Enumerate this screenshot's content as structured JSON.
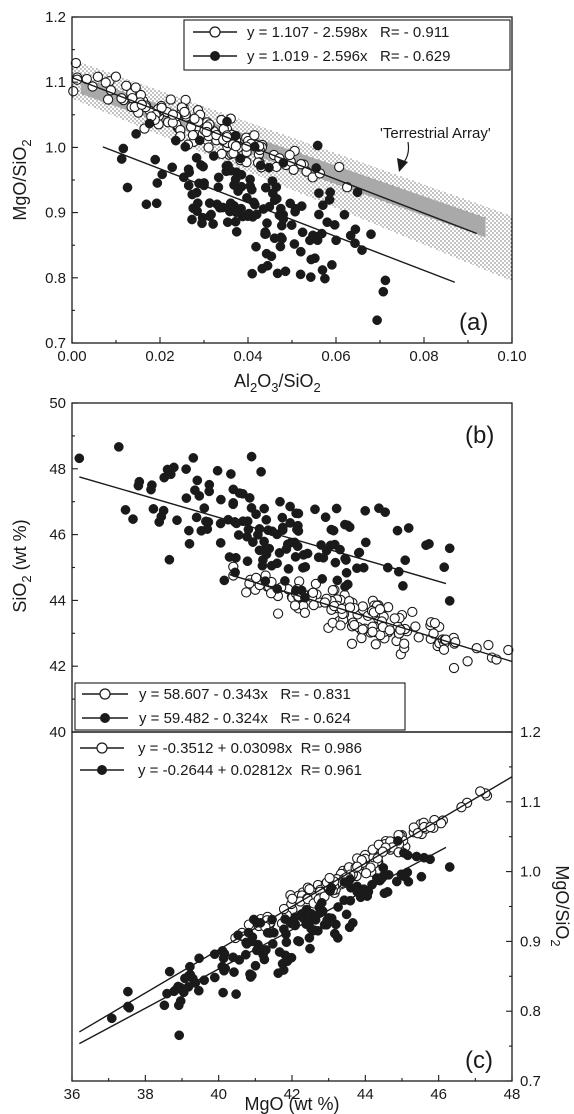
{
  "chart_data": [
    {
      "panel": "(a)",
      "type": "scatter",
      "xlabel": "Al₂O₃/SiO₂",
      "ylabel": "MgO/SiO₂",
      "xlim": [
        0.0,
        0.1
      ],
      "ylim": [
        0.7,
        1.2
      ],
      "xticks": [
        "0.00",
        "0.02",
        "0.04",
        "0.06",
        "0.08",
        "0.10"
      ],
      "yticks": [
        "0.7",
        "0.8",
        "0.9",
        "1.0",
        "1.1",
        "1.2"
      ],
      "legend": "top-right",
      "annotation": "'Terrestrial Array'",
      "series": [
        {
          "marker": "open",
          "label": "y = 1.107 - 2.598x   R= - 0.911",
          "fit": {
            "intercept": 1.107,
            "slope": -2.598,
            "x_range": [
              0.0,
              0.092
            ]
          }
        },
        {
          "marker": "filled",
          "label": "y = 1.019 - 2.596x   R= - 0.629",
          "fit": {
            "intercept": 1.019,
            "slope": -2.596,
            "x_range": [
              0.007,
              0.087
            ]
          }
        }
      ]
    },
    {
      "panel": "(b)",
      "type": "scatter",
      "xlabel": "",
      "ylabel": "SiO₂ (wt %)",
      "xlim": [
        36,
        48
      ],
      "ylim": [
        40,
        50
      ],
      "yticks": [
        "40",
        "42",
        "44",
        "46",
        "48",
        "50"
      ],
      "legend": "bottom-left",
      "series": [
        {
          "marker": "open",
          "label": "y = 58.607 - 0.343x   R= - 0.831",
          "fit": {
            "intercept": 58.607,
            "slope": -0.343,
            "x_range": [
              40.3,
              48
            ]
          }
        },
        {
          "marker": "filled",
          "label": "y = 59.482 - 0.324x   R= - 0.624",
          "fit": {
            "intercept": 59.482,
            "slope": -0.324,
            "x_range": [
              36.2,
              46.2
            ]
          }
        }
      ]
    },
    {
      "panel": "(c)",
      "type": "scatter",
      "xlabel": "MgO (wt %)",
      "ylabel": "MgO/SiO₂",
      "xlim": [
        36,
        48
      ],
      "ylim": [
        0.7,
        1.2
      ],
      "xticks": [
        "36",
        "38",
        "40",
        "42",
        "44",
        "46",
        "48"
      ],
      "yticks": [
        "0.7",
        "0.8",
        "0.9",
        "1.0",
        "1.1",
        "1.2"
      ],
      "legend": "top-left",
      "series": [
        {
          "marker": "open",
          "label": "y = -0.3512 + 0.03098x  R= 0.986",
          "fit": {
            "intercept": -0.3512,
            "slope": 0.03098,
            "x_range": [
              36.2,
              48
            ]
          }
        },
        {
          "marker": "filled",
          "label": "y = -0.2644 + 0.02812x  R= 0.961",
          "fit": {
            "intercept": -0.2644,
            "slope": 0.02812,
            "x_range": [
              36.2,
              46.2
            ]
          }
        }
      ]
    }
  ]
}
